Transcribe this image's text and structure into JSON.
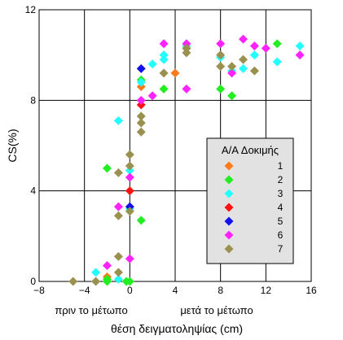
{
  "chart_data": {
    "type": "scatter",
    "xlabel": "θέση δειγματοληψίας (cm)",
    "ylabel": "CS(%)",
    "xlim": [
      -8,
      16
    ],
    "ylim": [
      0,
      12
    ],
    "xticks": [
      -8,
      -4,
      0,
      4,
      8,
      12,
      16
    ],
    "yticks": [
      0,
      4,
      8,
      12
    ],
    "grid": true,
    "annotations": {
      "left": "πριν το μέτωπο",
      "right": "μετά το μέτωπο"
    },
    "legend": {
      "title": "A/A Δοκιμής",
      "position": "right"
    },
    "series": [
      {
        "name": "1",
        "color": "#FF7A1A",
        "points": [
          [
            -2,
            0.2
          ],
          [
            1,
            8.6
          ],
          [
            4,
            9.2
          ]
        ]
      },
      {
        "name": "2",
        "color": "#22EE22",
        "points": [
          [
            -2,
            0
          ],
          [
            -2,
            0.1
          ],
          [
            -0.3,
            0
          ],
          [
            0,
            0
          ],
          [
            -2,
            5
          ],
          [
            1,
            2.7
          ],
          [
            1,
            8.9
          ],
          [
            3,
            8.5
          ],
          [
            5,
            10.3
          ],
          [
            8,
            8.5
          ],
          [
            9,
            8.2
          ],
          [
            13,
            10.5
          ]
        ]
      },
      {
        "name": "3",
        "color": "#22FFFF",
        "points": [
          [
            -3,
            0.4
          ],
          [
            -1,
            0.1
          ],
          [
            -1,
            7.1
          ],
          [
            0,
            4.9
          ],
          [
            0,
            3.2
          ],
          [
            1,
            8.8
          ],
          [
            2,
            9.6
          ],
          [
            3,
            9.8
          ],
          [
            3,
            10
          ],
          [
            5,
            10.4
          ],
          [
            8,
            9.9
          ],
          [
            9,
            9.3
          ],
          [
            10,
            9.4
          ],
          [
            11,
            10
          ],
          [
            13,
            9.7
          ],
          [
            15,
            10.4
          ]
        ]
      },
      {
        "name": "4",
        "color": "#FF1111",
        "points": [
          [
            0,
            4
          ],
          [
            1,
            7.8
          ]
        ]
      },
      {
        "name": "5",
        "color": "#1111EE",
        "points": [
          [
            0,
            3.3
          ],
          [
            1,
            9.4
          ]
        ]
      },
      {
        "name": "6",
        "color": "#FF22FF",
        "points": [
          [
            -2,
            0.7
          ],
          [
            -1,
            3.3
          ],
          [
            0,
            1
          ],
          [
            0,
            4.6
          ],
          [
            1,
            8
          ],
          [
            2,
            8.2
          ],
          [
            3,
            10.5
          ],
          [
            5,
            8.5
          ],
          [
            5,
            10.5
          ],
          [
            8,
            10.5
          ],
          [
            9,
            9.2
          ],
          [
            10,
            10.7
          ],
          [
            11,
            10.4
          ],
          [
            12,
            10.3
          ],
          [
            15,
            10
          ]
        ]
      },
      {
        "name": "7",
        "color": "#9A9050",
        "points": [
          [
            -5,
            0
          ],
          [
            -3,
            0
          ],
          [
            -1,
            0.4
          ],
          [
            -1,
            1.1
          ],
          [
            -1,
            2.9
          ],
          [
            -1,
            4.8
          ],
          [
            0,
            5.1
          ],
          [
            0,
            5.6
          ],
          [
            0,
            3.1
          ],
          [
            1,
            7
          ],
          [
            1,
            6.6
          ],
          [
            1,
            7.3
          ],
          [
            3,
            9.2
          ],
          [
            5,
            10.3
          ],
          [
            5,
            10.1
          ],
          [
            8,
            9.5
          ],
          [
            8,
            10
          ],
          [
            9,
            9.5
          ],
          [
            10,
            9.8
          ],
          [
            11,
            9.3
          ]
        ]
      }
    ]
  }
}
